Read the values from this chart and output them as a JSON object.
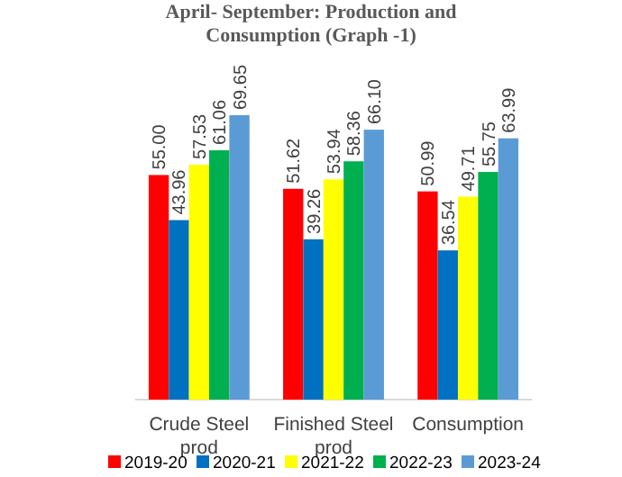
{
  "chart_data": {
    "type": "bar",
    "title": "April- September: Production and Consumption (Graph -1)",
    "categories": [
      "Crude Steel prod",
      "Finished Steel prod",
      "Consumption"
    ],
    "series": [
      {
        "name": "2019-20",
        "color": "#ff0000",
        "values": [
          55.0,
          51.62,
          50.99
        ],
        "value_labels": [
          "55.00",
          "51.62",
          "50.99"
        ]
      },
      {
        "name": "2020-21",
        "color": "#0070c0",
        "values": [
          43.96,
          39.26,
          36.54
        ],
        "value_labels": [
          "43.96",
          "39.26",
          "36.54"
        ]
      },
      {
        "name": "2021-22",
        "color": "#ffff00",
        "values": [
          57.53,
          53.94,
          49.71
        ],
        "value_labels": [
          "57.53",
          "53.94",
          "49.71"
        ]
      },
      {
        "name": "2022-23",
        "color": "#00b050",
        "values": [
          61.06,
          58.36,
          55.75
        ],
        "value_labels": [
          "61.06",
          "58.36",
          "55.75"
        ]
      },
      {
        "name": "2023-24",
        "color": "#5b9bd5",
        "values": [
          69.65,
          66.1,
          63.99
        ],
        "value_labels": [
          "69.65",
          "66.10",
          "63.99"
        ]
      }
    ],
    "legend": "bottom"
  }
}
